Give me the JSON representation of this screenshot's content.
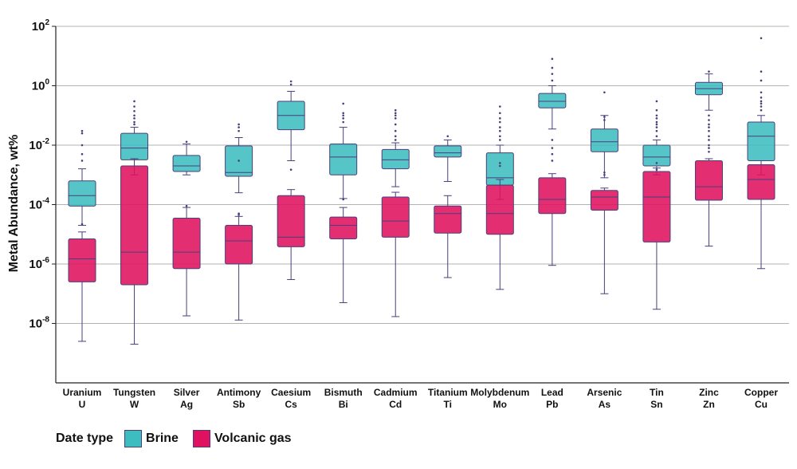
{
  "chart_data": {
    "type": "boxplot",
    "ylabel": "Metal Abundance, wt%",
    "yscale": "log",
    "ylim": [
      1e-10,
      100
    ],
    "yticks": [
      {
        "base": "10",
        "exp": "2",
        "value": 100
      },
      {
        "base": "10",
        "exp": "0",
        "value": 1
      },
      {
        "base": "10",
        "exp": "-2",
        "value": 0.01
      },
      {
        "base": "10",
        "exp": "-4",
        "value": 0.0001
      },
      {
        "base": "10",
        "exp": "-6",
        "value": 1e-06
      },
      {
        "base": "10",
        "exp": "-8",
        "value": 1e-08
      }
    ],
    "grid": true,
    "legend": {
      "title": "Date type",
      "position": "bottom-left"
    },
    "categories": [
      {
        "name": "Uranium",
        "symbol": "U"
      },
      {
        "name": "Tungsten",
        "symbol": "W"
      },
      {
        "name": "Silver",
        "symbol": "Ag"
      },
      {
        "name": "Antimony",
        "symbol": "Sb"
      },
      {
        "name": "Caesium",
        "symbol": "Cs"
      },
      {
        "name": "Bismuth",
        "symbol": "Bi"
      },
      {
        "name": "Cadmium",
        "symbol": "Cd"
      },
      {
        "name": "Titanium",
        "symbol": "Ti"
      },
      {
        "name": "Molybdenum",
        "symbol": "Mo"
      },
      {
        "name": "Lead",
        "symbol": "Pb"
      },
      {
        "name": "Arsenic",
        "symbol": "As"
      },
      {
        "name": "Tin",
        "symbol": "Sn"
      },
      {
        "name": "Zinc",
        "symbol": "Zn"
      },
      {
        "name": "Copper",
        "symbol": "Cu"
      }
    ],
    "series": [
      {
        "name": "Brine",
        "color": "#3dbdc0",
        "boxes": [
          {
            "whislo": 2e-05,
            "q1": 8.9e-05,
            "med": 0.0002,
            "q3": 0.00063,
            "whishi": 0.0016,
            "fliers": [
              0.03,
              0.025,
              0.01,
              0.005,
              0.003,
              2.2e-05
            ]
          },
          {
            "whislo": 0.001,
            "q1": 0.0032,
            "med": 0.008,
            "q3": 0.025,
            "whishi": 0.04,
            "fliers": [
              0.3,
              0.2,
              0.14,
              0.1,
              0.08,
              0.06,
              0.05
            ]
          },
          {
            "whislo": 0.001,
            "q1": 0.0013,
            "med": 0.002,
            "q3": 0.0045,
            "whishi": 0.011,
            "fliers": [
              0.013
            ]
          },
          {
            "whislo": 0.00025,
            "q1": 0.0009,
            "med": 0.0012,
            "q3": 0.0095,
            "whishi": 0.018,
            "fliers": [
              0.05,
              0.04,
              0.03,
              0.003,
              5e-05
            ]
          },
          {
            "whislo": 0.003,
            "q1": 0.033,
            "med": 0.1,
            "q3": 0.3,
            "whishi": 0.65,
            "fliers": [
              1.4,
              1.1,
              0.0015
            ]
          },
          {
            "whislo": 0.00016,
            "q1": 0.001,
            "med": 0.004,
            "q3": 0.011,
            "whishi": 0.04,
            "fliers": [
              0.25,
              0.12,
              0.1,
              0.08,
              0.06
            ]
          },
          {
            "whislo": 0.0004,
            "q1": 0.0016,
            "med": 0.0032,
            "q3": 0.0072,
            "whishi": 0.012,
            "fliers": [
              0.15,
              0.12,
              0.1,
              0.08,
              0.05,
              0.03,
              0.02,
              0.015
            ]
          },
          {
            "whislo": 0.0006,
            "q1": 0.004,
            "med": 0.0055,
            "q3": 0.0095,
            "whishi": 0.015,
            "fliers": [
              0.02
            ]
          },
          {
            "whislo": 0.00015,
            "q1": 0.00045,
            "med": 0.0008,
            "q3": 0.0055,
            "whishi": 0.01,
            "fliers": [
              0.2,
              0.12,
              0.08,
              0.06,
              0.04,
              0.03,
              0.02,
              0.015,
              0.0025,
              0.002
            ]
          },
          {
            "whislo": 0.035,
            "q1": 0.18,
            "med": 0.3,
            "q3": 0.55,
            "whishi": 1.0,
            "fliers": [
              8,
              4,
              2.5,
              1.5,
              0.015,
              0.008,
              0.005,
              0.003
            ]
          },
          {
            "whislo": 0.0008,
            "q1": 0.006,
            "med": 0.013,
            "q3": 0.035,
            "whishi": 0.1,
            "fliers": [
              0.6,
              0.09,
              0.07,
              0.0012,
              0.001
            ]
          },
          {
            "whislo": 0.001,
            "q1": 0.002,
            "med": 0.004,
            "q3": 0.01,
            "whishi": 0.015,
            "fliers": [
              0.3,
              0.15,
              0.1,
              0.08,
              0.06,
              0.05,
              0.04,
              0.03,
              0.02,
              0.0025,
              0.0015
            ]
          },
          {
            "whislo": 0.15,
            "q1": 0.5,
            "med": 0.8,
            "q3": 1.3,
            "whishi": 2.5,
            "fliers": [
              3,
              0.1,
              0.07,
              0.05,
              0.04,
              0.03,
              0.02,
              0.015,
              0.01,
              0.008,
              0.006
            ]
          },
          {
            "whislo": 0.001,
            "q1": 0.003,
            "med": 0.02,
            "q3": 0.06,
            "whishi": 0.1,
            "fliers": [
              40,
              3,
              1.5,
              0.6,
              0.4,
              0.3,
              0.25,
              0.2,
              0.15
            ]
          }
        ]
      },
      {
        "name": "Volcanic gas",
        "color": "#e0115f",
        "boxes": [
          {
            "whislo": 2.5e-09,
            "q1": 2.5e-07,
            "med": 1.5e-06,
            "q3": 7e-06,
            "whishi": 1.2e-05,
            "fliers": []
          },
          {
            "whislo": 2e-09,
            "q1": 2e-07,
            "med": 2.5e-06,
            "q3": 0.002,
            "whishi": 0.0035,
            "fliers": []
          },
          {
            "whislo": 1.8e-08,
            "q1": 7e-07,
            "med": 2.5e-06,
            "q3": 3.5e-05,
            "whishi": 8e-05,
            "fliers": [
              9e-05
            ]
          },
          {
            "whislo": 1.3e-08,
            "q1": 1e-06,
            "med": 6e-06,
            "q3": 2e-05,
            "whishi": 4e-05,
            "fliers": [
              4.5e-05
            ]
          },
          {
            "whislo": 3e-07,
            "q1": 3.8e-06,
            "med": 8e-06,
            "q3": 0.0002,
            "whishi": 0.00032,
            "fliers": []
          },
          {
            "whislo": 5e-08,
            "q1": 7e-06,
            "med": 2e-05,
            "q3": 3.8e-05,
            "whishi": 8e-05,
            "fliers": [
              0.00015
            ]
          },
          {
            "whislo": 1.7e-08,
            "q1": 8e-06,
            "med": 2.8e-05,
            "q3": 0.00018,
            "whishi": 0.00026,
            "fliers": []
          },
          {
            "whislo": 3.5e-07,
            "q1": 1.1e-05,
            "med": 5e-05,
            "q3": 9e-05,
            "whishi": 0.0002,
            "fliers": []
          },
          {
            "whislo": 1.4e-07,
            "q1": 1e-05,
            "med": 5e-05,
            "q3": 0.00045,
            "whishi": 0.0007,
            "fliers": []
          },
          {
            "whislo": 9e-07,
            "q1": 5e-05,
            "med": 0.00015,
            "q3": 0.0008,
            "whishi": 0.0011,
            "fliers": []
          },
          {
            "whislo": 1e-07,
            "q1": 6.5e-05,
            "med": 0.00018,
            "q3": 0.0003,
            "whishi": 0.00036,
            "fliers": []
          },
          {
            "whislo": 3e-08,
            "q1": 5.5e-06,
            "med": 0.00018,
            "q3": 0.0013,
            "whishi": 0.0017,
            "fliers": []
          },
          {
            "whislo": 4e-06,
            "q1": 0.00014,
            "med": 0.0004,
            "q3": 0.003,
            "whishi": 0.0035,
            "fliers": []
          },
          {
            "whislo": 7e-07,
            "q1": 0.00015,
            "med": 0.0007,
            "q3": 0.0022,
            "whishi": 0.003,
            "fliers": []
          }
        ]
      }
    ]
  }
}
